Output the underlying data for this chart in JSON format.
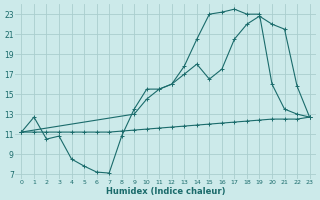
{
  "xlabel": "Humidex (Indice chaleur)",
  "bg_color": "#cceaea",
  "grid_color": "#aacece",
  "line_color": "#1a6b6b",
  "xlim": [
    -0.5,
    23.5
  ],
  "ylim": [
    6.5,
    24
  ],
  "xticks": [
    0,
    1,
    2,
    3,
    4,
    5,
    6,
    7,
    8,
    9,
    10,
    11,
    12,
    13,
    14,
    15,
    16,
    17,
    18,
    19,
    20,
    21,
    22,
    23
  ],
  "yticks": [
    7,
    9,
    11,
    13,
    15,
    17,
    19,
    21,
    23
  ],
  "line1_x": [
    0,
    1,
    2,
    3,
    4,
    5,
    6,
    7,
    8,
    9,
    10,
    11,
    12,
    13,
    14,
    15,
    16,
    17,
    18,
    19,
    20,
    21,
    22,
    23
  ],
  "line1_y": [
    11.2,
    12.7,
    10.5,
    10.8,
    8.5,
    7.8,
    7.2,
    7.1,
    10.8,
    13.5,
    15.5,
    15.5,
    16.0,
    17.8,
    20.5,
    23.0,
    23.2,
    23.5,
    23.0,
    23.0,
    16.0,
    13.5,
    13.0,
    12.7
  ],
  "line2_x": [
    0,
    1,
    2,
    3,
    4,
    5,
    6,
    7,
    8,
    9,
    10,
    11,
    12,
    13,
    14,
    15,
    16,
    17,
    18,
    19,
    20,
    21,
    22,
    23
  ],
  "line2_y": [
    11.2,
    11.2,
    11.2,
    11.2,
    11.2,
    11.2,
    11.2,
    11.2,
    11.3,
    11.4,
    11.5,
    11.6,
    11.7,
    11.8,
    11.9,
    12.0,
    12.1,
    12.2,
    12.3,
    12.4,
    12.5,
    12.5,
    12.5,
    12.7
  ],
  "line3_x": [
    0,
    9,
    10,
    11,
    12,
    13,
    14,
    15,
    16,
    17,
    18,
    19,
    20,
    21,
    22,
    23
  ],
  "line3_y": [
    11.2,
    13.0,
    14.5,
    15.5,
    16.0,
    17.0,
    18.0,
    16.5,
    17.5,
    20.5,
    22.0,
    22.8,
    22.0,
    21.5,
    15.8,
    12.7
  ]
}
